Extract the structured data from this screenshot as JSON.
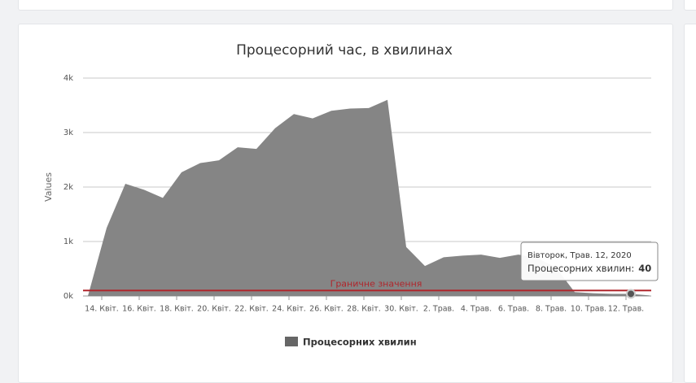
{
  "chart_data": {
    "type": "area",
    "title": "Процесорний час, в хвилинах",
    "y_label": "Values",
    "categories": [
      null,
      "14. Квіт.",
      null,
      "16. Квіт.",
      null,
      "18. Квіт.",
      null,
      "20. Квіт.",
      null,
      "22. Квіт.",
      null,
      "24. Квіт.",
      null,
      "26. Квіт.",
      null,
      "28. Квіт.",
      null,
      "30. Квіт.",
      null,
      "2. Трав.",
      null,
      "4. Трав.",
      null,
      "6. Трав.",
      null,
      "8. Трав.",
      null,
      "10. Трав.",
      null,
      "12. Трав.",
      null
    ],
    "series": [
      {
        "name": "Процесорних хвилин",
        "color": "#858585",
        "legend_color": "#666666",
        "values": [
          0,
          1250,
          2060,
          1950,
          1800,
          2270,
          2440,
          2490,
          2730,
          2700,
          3080,
          3340,
          3260,
          3400,
          3440,
          3450,
          3600,
          900,
          550,
          710,
          740,
          760,
          700,
          760,
          700,
          520,
          70,
          50,
          40,
          40,
          10
        ]
      }
    ],
    "threshold": {
      "label": "Граничне значення",
      "value": 100,
      "color": "#b0262c"
    },
    "tooltip": {
      "date": "Вівторок, Трав. 12, 2020",
      "label": "Процесорних хвилин:",
      "index": 29
    },
    "ylim": [
      0,
      4000
    ],
    "yticks": [
      {
        "value": 0,
        "label": "0k"
      },
      {
        "value": 1000,
        "label": "1k"
      },
      {
        "value": 2000,
        "label": "2k"
      },
      {
        "value": 3000,
        "label": "3k"
      },
      {
        "value": 4000,
        "label": "4k"
      }
    ],
    "grid": true
  }
}
